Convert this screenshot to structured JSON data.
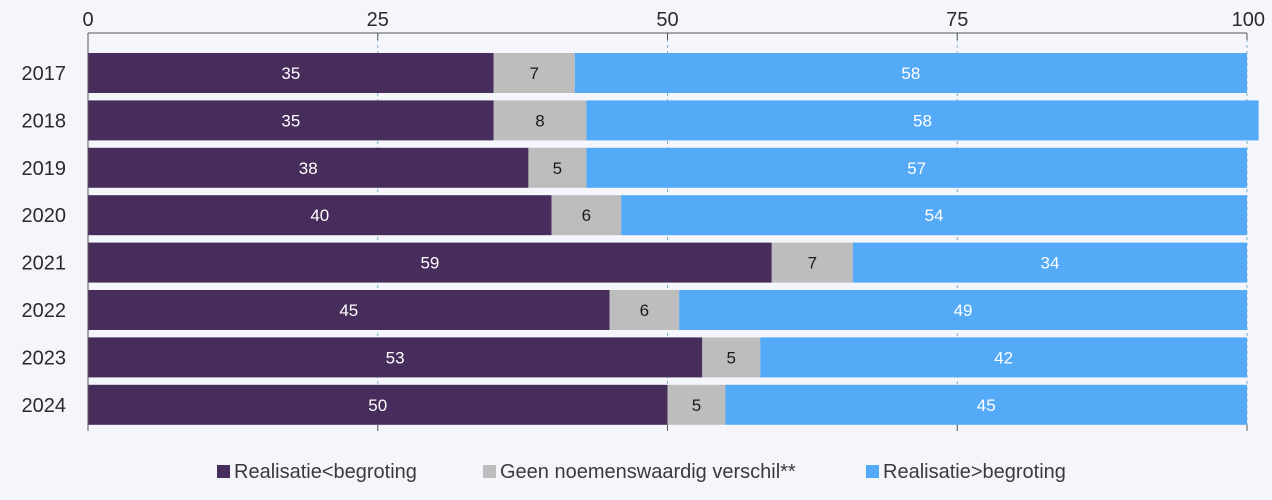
{
  "chart_data": {
    "type": "bar",
    "orientation": "horizontal",
    "stacked": true,
    "categories": [
      "2017",
      "2018",
      "2019",
      "2020",
      "2021",
      "2022",
      "2023",
      "2024"
    ],
    "series": [
      {
        "name": "Realisatie<begroting",
        "color": "#472d5c",
        "values": [
          35,
          35,
          38,
          40,
          59,
          45,
          53,
          50
        ]
      },
      {
        "name": "Geen noemenswaardig verschil**",
        "color": "#bdbdbd",
        "values": [
          7,
          8,
          5,
          6,
          7,
          6,
          5,
          5
        ]
      },
      {
        "name": "Realisatie>begroting",
        "color": "#55aaf8",
        "values": [
          58,
          58,
          57,
          54,
          34,
          49,
          42,
          45
        ]
      }
    ],
    "label_colors": [
      "#ffffff",
      "#1a1a1a",
      "#ffffff"
    ],
    "xlim": [
      0,
      100
    ],
    "xticks": [
      0,
      25,
      50,
      75,
      100
    ],
    "grid": true,
    "legend_position": "bottom",
    "title": "",
    "xlabel": "",
    "ylabel": ""
  }
}
